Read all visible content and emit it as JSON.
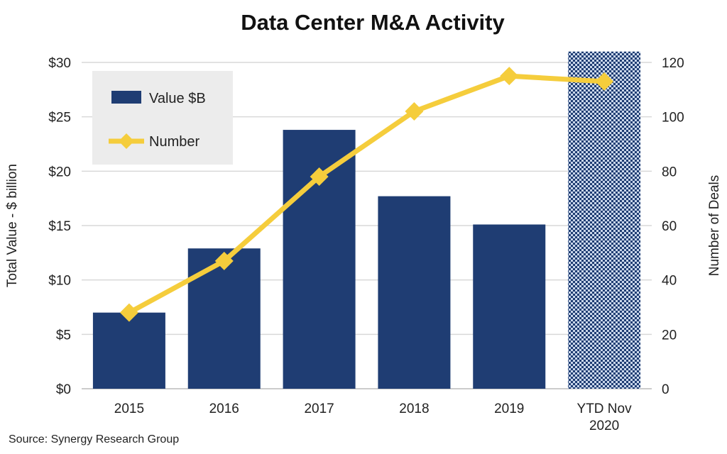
{
  "chart_data": {
    "type": "bar+line",
    "title": "Data Center M&A Activity",
    "categories": [
      "2015",
      "2016",
      "2017",
      "2018",
      "2019",
      "YTD Nov 2020"
    ],
    "category_lines": [
      [
        "2015"
      ],
      [
        "2016"
      ],
      [
        "2017"
      ],
      [
        "2018"
      ],
      [
        "2019"
      ],
      [
        "YTD Nov",
        "2020"
      ]
    ],
    "series": [
      {
        "name": "Value $B",
        "type": "bar",
        "axis": "left",
        "values": [
          7.0,
          12.9,
          23.8,
          17.7,
          15.1,
          31.0
        ],
        "color": "#1f3d73",
        "last_bar_pattern": "checkered"
      },
      {
        "name": "Number",
        "type": "line",
        "axis": "right",
        "values": [
          28,
          47,
          78,
          102,
          115,
          113
        ],
        "color": "#f5cd3c",
        "marker": "diamond"
      }
    ],
    "ylabel": "Total Value - $ billion",
    "y2label": "Number of Deals",
    "ylim": [
      0,
      30
    ],
    "y2lim": [
      0,
      120
    ],
    "yticks": [
      "$0",
      "$5",
      "$10",
      "$15",
      "$20",
      "$25",
      "$30"
    ],
    "y2ticks": [
      "0",
      "20",
      "40",
      "60",
      "80",
      "100",
      "120"
    ],
    "grid": true,
    "legend": "top-left",
    "source": "Source: Synergy Research Group"
  }
}
